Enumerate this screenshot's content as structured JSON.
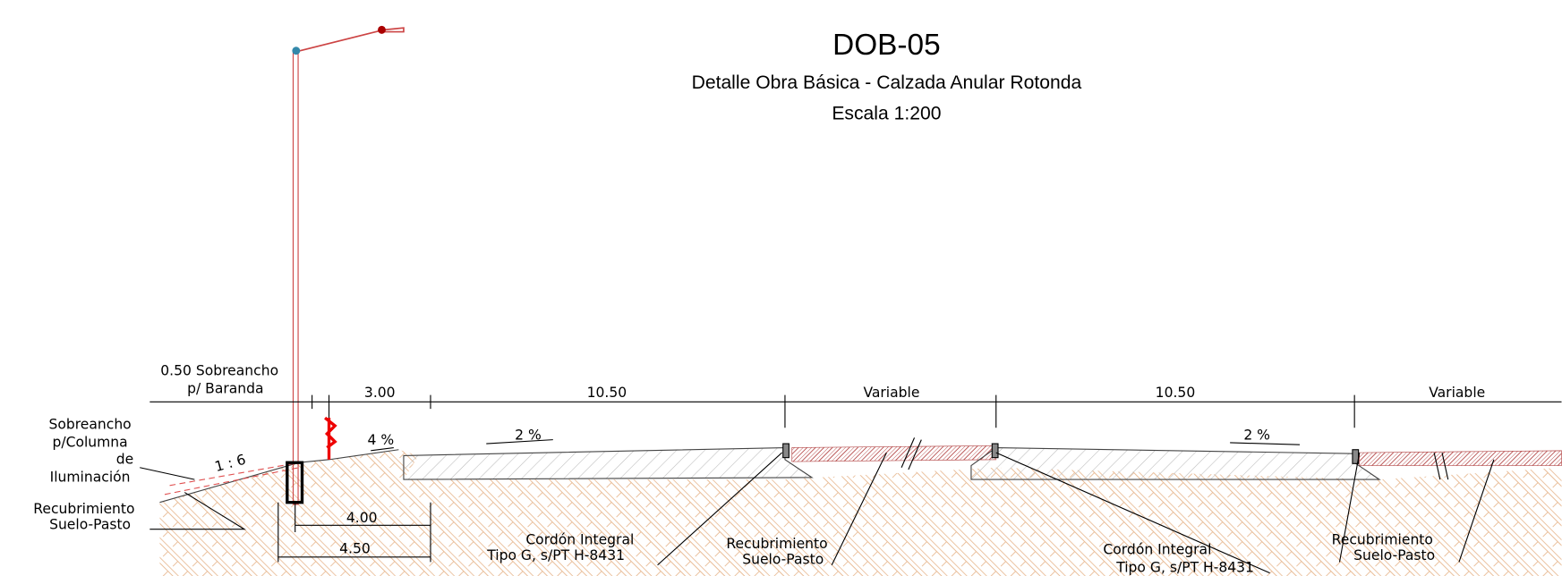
{
  "header": {
    "title": "DOB-05",
    "subtitle": "Detalle Obra Básica - Calzada Anular Rotonda",
    "scale": "Escala 1:200"
  },
  "dimensions": [
    "3.00",
    "10.50",
    "Variable",
    "10.50",
    "Variable",
    "4.00",
    "4.50"
  ],
  "slopes": [
    "1 : 6",
    "4 %",
    "2 %",
    "2 %"
  ],
  "labels": [
    [
      "0.50 Sobreancho",
      "p/ Baranda"
    ],
    [
      "Sobreancho",
      "p/Columna",
      "de",
      "Iluminación"
    ],
    [
      "Recubrimiento",
      "Suelo-Pasto"
    ],
    [
      "Cordón Integral",
      "Tipo G, s/PT H-8431"
    ],
    [
      "Recubrimiento",
      "Suelo-Pasto"
    ],
    [
      "Cordón Integral",
      "Tipo G, s/PT H-8431"
    ],
    [
      "Recubrimiento",
      "Suelo-Pasto"
    ]
  ]
}
